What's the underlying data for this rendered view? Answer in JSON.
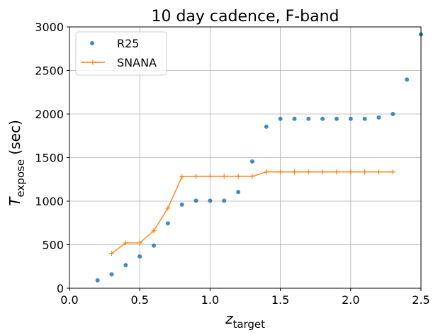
{
  "chart_data": {
    "type": "line",
    "title": "10 day cadence, F-band",
    "xlabel": "z",
    "xlabel_sub": "target",
    "ylabel": "T",
    "ylabel_sub": "expose",
    "ylabel_suffix": " (sec)",
    "xlim": [
      0.0,
      2.5
    ],
    "ylim": [
      0,
      3000
    ],
    "xticks": [
      0.0,
      0.5,
      1.0,
      1.5,
      2.0,
      2.5
    ],
    "xtick_labels": [
      "0.0",
      "0.5",
      "1.0",
      "1.5",
      "2.0",
      "2.5"
    ],
    "yticks": [
      0,
      500,
      1000,
      1500,
      2000,
      2500,
      3000
    ],
    "ytick_labels": [
      "0",
      "500",
      "1000",
      "1500",
      "2000",
      "2500",
      "3000"
    ],
    "grid": true,
    "legend_position": "top-left",
    "series": [
      {
        "name": "R25",
        "style": "points",
        "color": "#1f77b4",
        "x": [
          0.2,
          0.3,
          0.4,
          0.5,
          0.6,
          0.7,
          0.8,
          0.9,
          1.0,
          1.1,
          1.2,
          1.3,
          1.4,
          1.5,
          1.6,
          1.7,
          1.8,
          1.9,
          2.0,
          2.1,
          2.2,
          2.3,
          2.4,
          2.5
        ],
        "y": [
          90,
          160,
          265,
          365,
          490,
          745,
          960,
          1005,
          1005,
          1005,
          1105,
          1455,
          1855,
          1945,
          1945,
          1945,
          1945,
          1945,
          1945,
          1945,
          1960,
          2000,
          2395,
          2915
        ]
      },
      {
        "name": "SNANA",
        "style": "line",
        "color": "#ff7f0e",
        "x": [
          0.3,
          0.4,
          0.5,
          0.6,
          0.7,
          0.8,
          0.9,
          1.0,
          1.1,
          1.2,
          1.3,
          1.4,
          1.5,
          1.6,
          1.7,
          1.8,
          1.9,
          2.0,
          2.1,
          2.2,
          2.3
        ],
        "y": [
          400,
          520,
          520,
          660,
          920,
          1280,
          1285,
          1285,
          1285,
          1285,
          1285,
          1335,
          1335,
          1335,
          1335,
          1335,
          1335,
          1335,
          1335,
          1335,
          1335
        ]
      }
    ]
  }
}
